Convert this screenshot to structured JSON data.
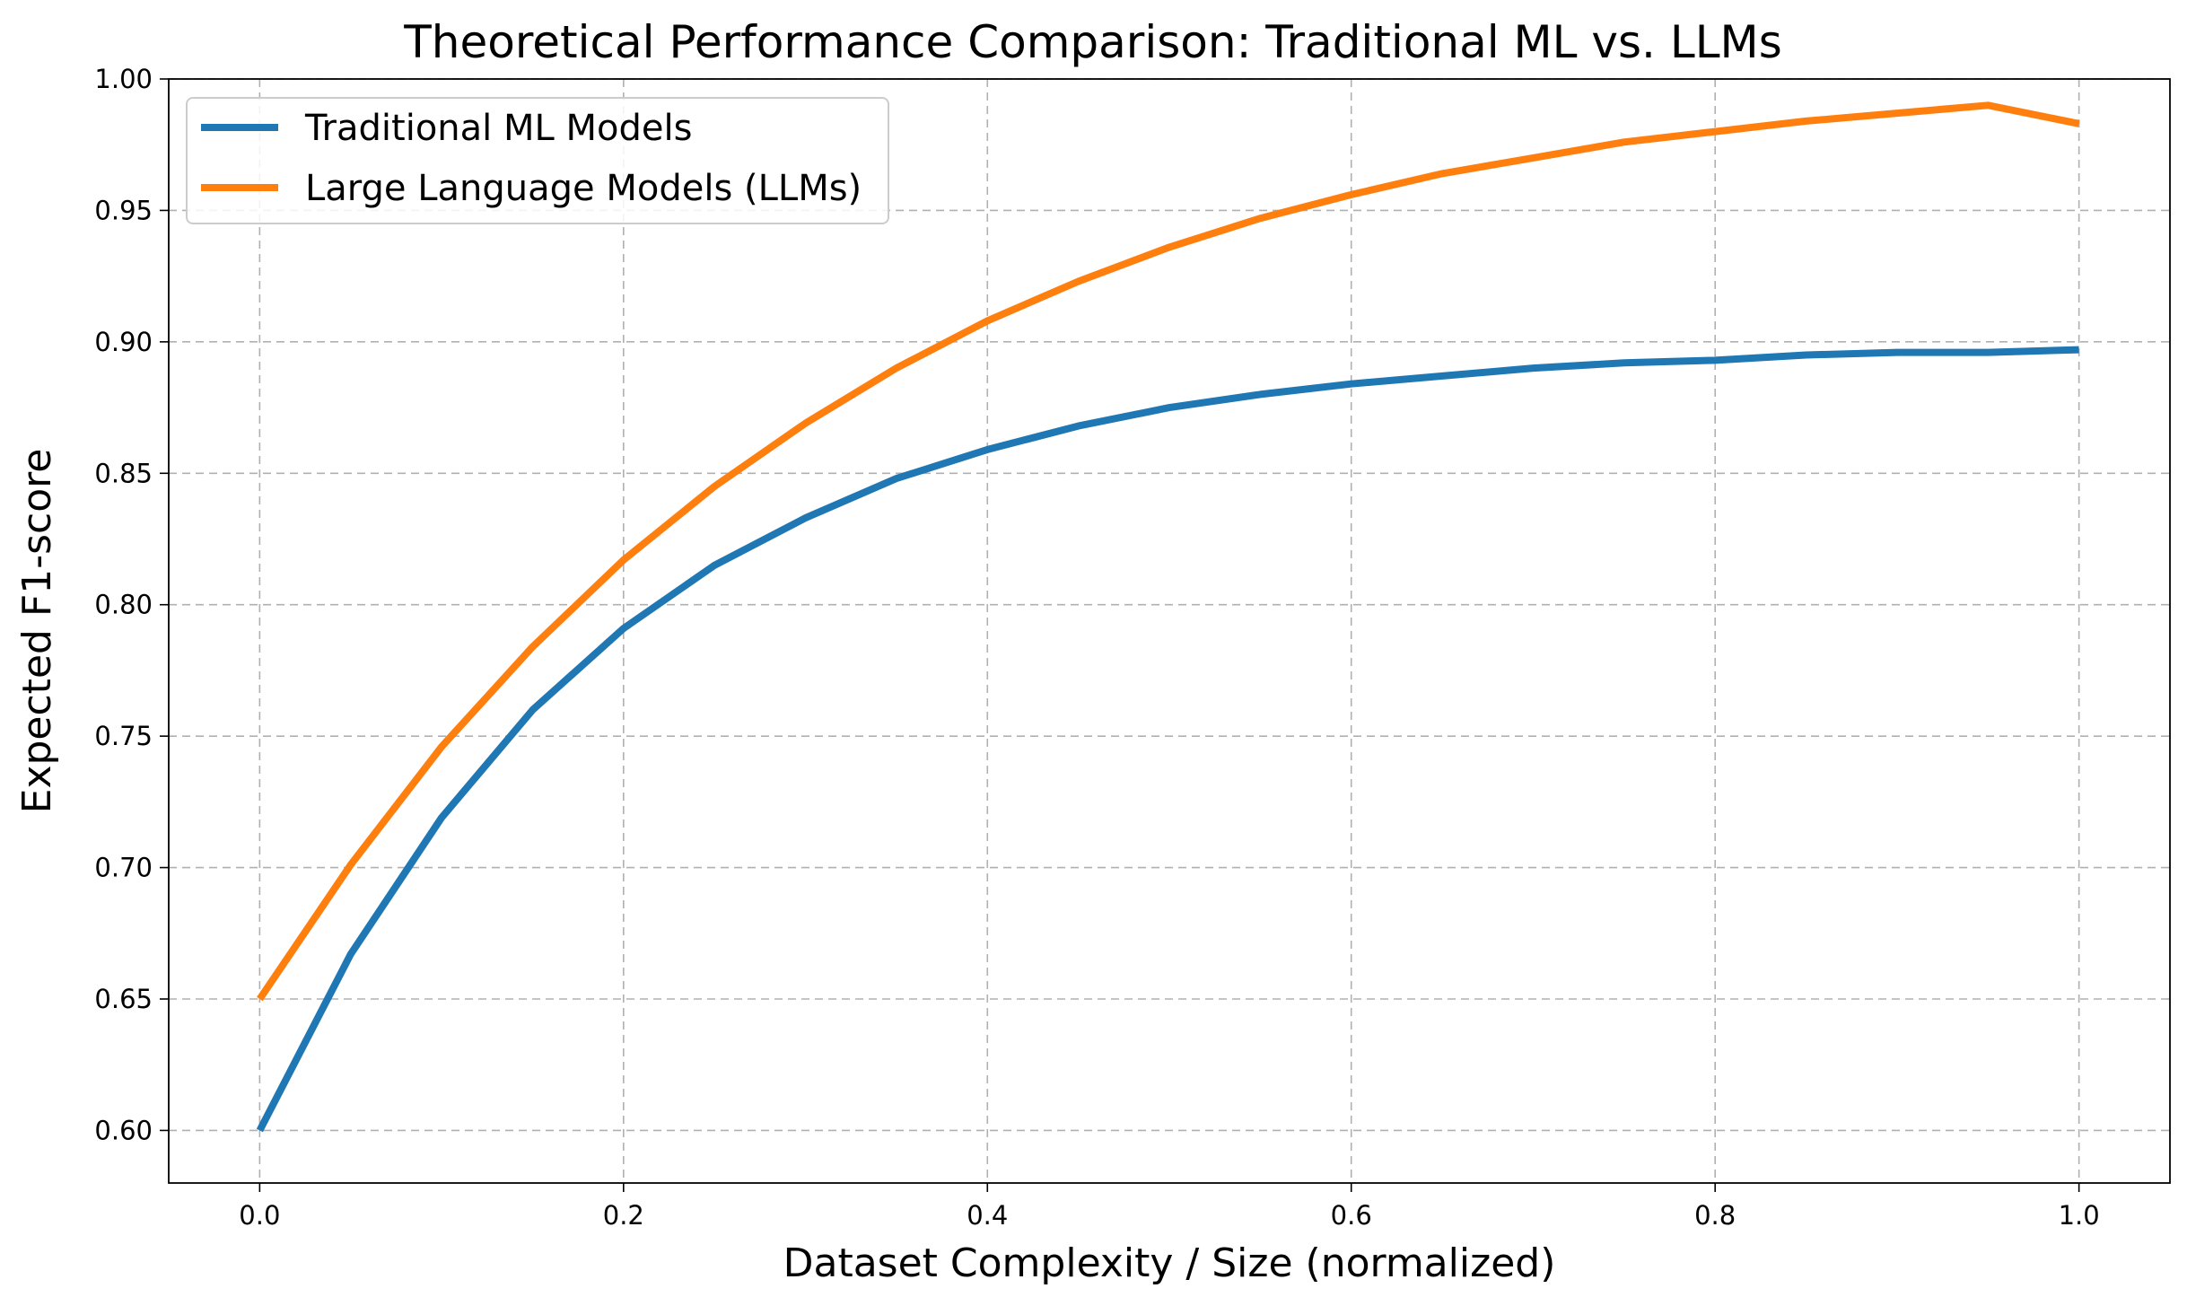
{
  "chart_data": {
    "type": "line",
    "title": "Theoretical Performance Comparison: Traditional ML vs. LLMs",
    "xlabel": "Dataset Complexity / Size (normalized)",
    "ylabel": "Expected F1-score",
    "xlim": [
      -0.05,
      1.05
    ],
    "ylim": [
      0.58,
      1.0
    ],
    "xticks": [
      0.0,
      0.2,
      0.4,
      0.6,
      0.8,
      1.0
    ],
    "xtick_labels": [
      "0.0",
      "0.2",
      "0.4",
      "0.6",
      "0.8",
      "1.0"
    ],
    "yticks": [
      0.6,
      0.65,
      0.7,
      0.75,
      0.8,
      0.85,
      0.9,
      0.95,
      1.0
    ],
    "ytick_labels": [
      "0.60",
      "0.65",
      "0.70",
      "0.75",
      "0.80",
      "0.85",
      "0.90",
      "0.95",
      "1.00"
    ],
    "grid": true,
    "legend_position": "top-left",
    "x": [
      0.0,
      0.05,
      0.1,
      0.15,
      0.2,
      0.25,
      0.3,
      0.35,
      0.4,
      0.45,
      0.5,
      0.55,
      0.6,
      0.65,
      0.7,
      0.75,
      0.8,
      0.85,
      0.9,
      0.95,
      1.0
    ],
    "series": [
      {
        "name": "Traditional ML Models",
        "color": "#1f77b4",
        "values": [
          0.6,
          0.667,
          0.719,
          0.76,
          0.791,
          0.815,
          0.833,
          0.848,
          0.859,
          0.868,
          0.875,
          0.88,
          0.884,
          0.887,
          0.89,
          0.892,
          0.893,
          0.895,
          0.896,
          0.896,
          0.897
        ]
      },
      {
        "name": "Large Language Models (LLMs)",
        "color": "#ff7f0e",
        "values": [
          0.65,
          0.701,
          0.746,
          0.784,
          0.817,
          0.845,
          0.869,
          0.89,
          0.908,
          0.923,
          0.936,
          0.947,
          0.956,
          0.964,
          0.97,
          0.976,
          0.98,
          0.984,
          0.987,
          0.99,
          0.983
        ]
      }
    ]
  }
}
